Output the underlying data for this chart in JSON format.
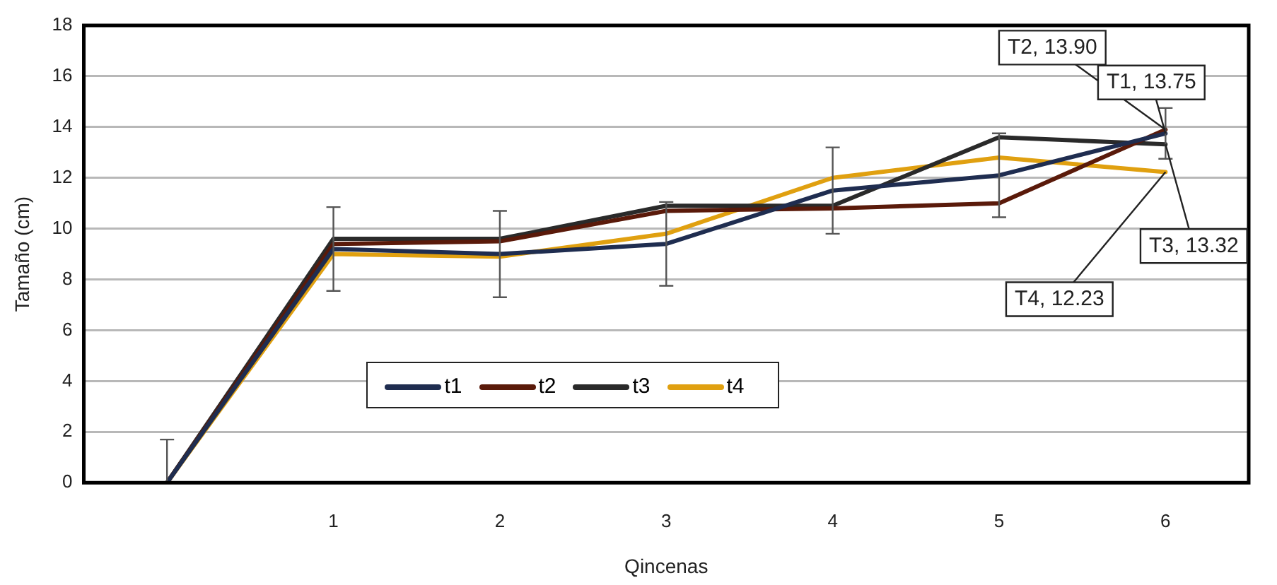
{
  "chart_data": {
    "type": "line",
    "xlabel": "Qincenas",
    "ylabel": "Tamaño (cm)",
    "categories": [
      null,
      "1",
      "2",
      "3",
      "4",
      "5",
      "6"
    ],
    "ylim": [
      0,
      18
    ],
    "yticks": [
      0,
      2,
      4,
      6,
      8,
      10,
      12,
      14,
      16,
      18
    ],
    "grid": "y",
    "legend": "bottom",
    "series": [
      {
        "name": "t1",
        "color": "#1f2d50",
        "values": [
          0,
          9.2,
          9.0,
          9.4,
          11.5,
          12.1,
          13.75
        ],
        "errors": [
          [
            0,
            1.7
          ],
          1.65,
          1.7,
          1.65,
          1.7,
          1.65,
          1.0
        ]
      },
      {
        "name": "t2",
        "color": "#5a1a0a",
        "values": [
          0,
          9.4,
          9.5,
          10.7,
          10.8,
          11.0,
          13.9
        ]
      },
      {
        "name": "t3",
        "color": "#2a2a2a",
        "values": [
          0,
          9.6,
          9.6,
          10.9,
          10.9,
          13.6,
          13.32
        ]
      },
      {
        "name": "t4",
        "color": "#e0a010",
        "values": [
          0,
          9.0,
          8.9,
          9.8,
          12.0,
          12.8,
          12.23
        ]
      }
    ],
    "annotations": [
      {
        "text": "T2, 13.90",
        "x": "6",
        "y": 13.9
      },
      {
        "text": "T1, 13.75",
        "x": "6",
        "y": 13.75
      },
      {
        "text": "T3, 13.32",
        "x": "6",
        "y": 13.32
      },
      {
        "text": "T4, 12.23",
        "x": "6",
        "y": 12.23
      }
    ]
  }
}
